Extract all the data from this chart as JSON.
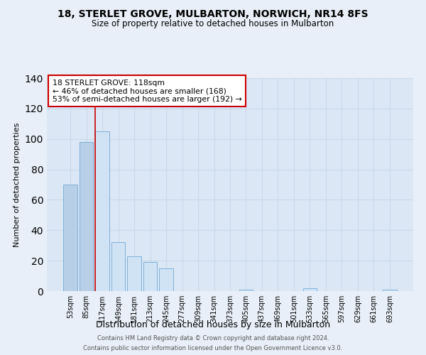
{
  "title1": "18, STERLET GROVE, MULBARTON, NORWICH, NR14 8FS",
  "title2": "Size of property relative to detached houses in Mulbarton",
  "xlabel": "Distribution of detached houses by size in Mulbarton",
  "ylabel": "Number of detached properties",
  "categories": [
    "53sqm",
    "85sqm",
    "117sqm",
    "149sqm",
    "181sqm",
    "213sqm",
    "245sqm",
    "277sqm",
    "309sqm",
    "341sqm",
    "373sqm",
    "405sqm",
    "437sqm",
    "469sqm",
    "501sqm",
    "533sqm",
    "565sqm",
    "597sqm",
    "629sqm",
    "661sqm",
    "693sqm"
  ],
  "values": [
    70,
    98,
    105,
    32,
    23,
    19,
    15,
    0,
    0,
    0,
    0,
    1,
    0,
    0,
    0,
    2,
    0,
    0,
    0,
    0,
    1
  ],
  "bar_color_left": "#b8cfe8",
  "bar_color_right": "#d0e3f5",
  "bar_edge_color": "#6fa8d4",
  "split_index": 1,
  "annotation_text_line1": "18 STERLET GROVE: 118sqm",
  "annotation_text_line2": "← 46% of detached houses are smaller (168)",
  "annotation_text_line3": "53% of semi-detached houses are larger (192) →",
  "annotation_box_color": "white",
  "annotation_box_edge_color": "#cc0000",
  "footer1": "Contains HM Land Registry data © Crown copyright and database right 2024.",
  "footer2": "Contains public sector information licensed under the Open Government Licence v3.0.",
  "ylim": [
    0,
    140
  ],
  "yticks": [
    0,
    20,
    40,
    60,
    80,
    100,
    120,
    140
  ],
  "background_color": "#e8eff8",
  "plot_bg_color": "#dce7f5",
  "grid_color": "#c8d8ec"
}
